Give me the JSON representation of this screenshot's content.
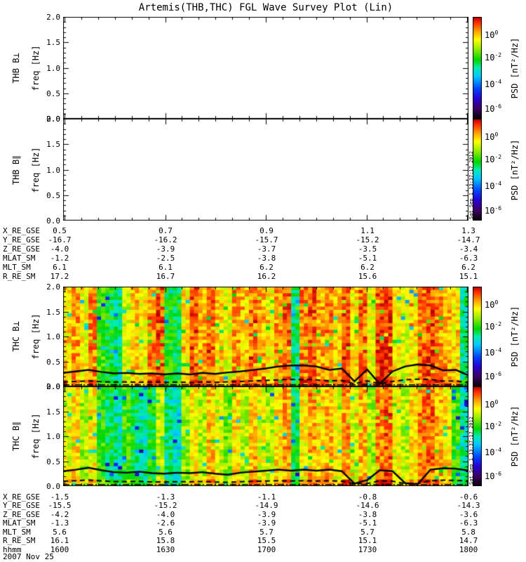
{
  "title": "Artemis(THB,THC) FGL Wave Survey Plot (Lin)",
  "date_label": "2007 Nov 25",
  "created_timestamp_vertical": "Sat Sep  1 13:37:17 2012",
  "axes": {
    "freq_axis_label": "freq [Hz]",
    "freq_tick_labels": [
      "2.0",
      "1.5",
      "1.0",
      "0.5",
      "0.0"
    ],
    "time_tick_labels": [
      "1600",
      "1630",
      "1700",
      "1730",
      "1800"
    ]
  },
  "colorbar": {
    "axis_label": "PSD [nT²/Hz]",
    "tick_labels": [
      {
        "base": "10",
        "exp": "0"
      },
      {
        "base": "10",
        "exp": "-2"
      },
      {
        "base": "10",
        "exp": "-4"
      },
      {
        "base": "10",
        "exp": "-6"
      }
    ]
  },
  "panels": [
    {
      "id": "thb-bperp",
      "label": "THB B⊥",
      "type": "blank",
      "timestamp_on_colorbar": false
    },
    {
      "id": "thb-bpar",
      "label": "THB B∥",
      "type": "blank",
      "timestamp_on_colorbar": true
    },
    {
      "id": "thc-bperp",
      "label": "THC B⊥",
      "type": "spectrogram",
      "timestamp_on_colorbar": false
    },
    {
      "id": "thc-bpar",
      "label": "THC B∥",
      "type": "spectrogram",
      "timestamp_on_colorbar": true
    }
  ],
  "ephemeris_mid": {
    "rows": [
      {
        "label": "X_RE_GSE",
        "values": [
          "0.5",
          "0.7",
          "0.9",
          "1.1",
          "1.3"
        ]
      },
      {
        "label": "Y_RE_GSE",
        "values": [
          "-16.7",
          "-16.2",
          "-15.7",
          "-15.2",
          "-14.7"
        ]
      },
      {
        "label": "Z_RE_GSE",
        "values": [
          "-4.0",
          "-3.9",
          "-3.7",
          "-3.5",
          "-3.4"
        ]
      },
      {
        "label": "MLAT_SM",
        "values": [
          "-1.2",
          "-2.5",
          "-3.8",
          "-5.1",
          "-6.3"
        ]
      },
      {
        "label": "MLT_SM",
        "values": [
          "6.1",
          "6.1",
          "6.2",
          "6.2",
          "6.2"
        ]
      },
      {
        "label": "R_RE_SM",
        "values": [
          "17.2",
          "16.7",
          "16.2",
          "15.6",
          "15.1"
        ]
      }
    ]
  },
  "ephemeris_bottom": {
    "rows": [
      {
        "label": "X_RE_GSE",
        "values": [
          "-1.5",
          "-1.3",
          "-1.1",
          "-0.8",
          "-0.6"
        ]
      },
      {
        "label": "Y_RE_GSE",
        "values": [
          "-15.5",
          "-15.2",
          "-14.9",
          "-14.6",
          "-14.3"
        ]
      },
      {
        "label": "Z_RE_GSE",
        "values": [
          "-4.2",
          "-4.0",
          "-3.9",
          "-3.8",
          "-3.6"
        ]
      },
      {
        "label": "MLAT_SM",
        "values": [
          "-1.3",
          "-2.6",
          "-3.9",
          "-5.1",
          "-6.3"
        ]
      },
      {
        "label": "MLT_SM",
        "values": [
          "5.6",
          "5.6",
          "5.7",
          "5.7",
          "5.8"
        ]
      },
      {
        "label": "R_RE_SM",
        "values": [
          "16.1",
          "15.8",
          "15.5",
          "15.1",
          "14.7"
        ]
      },
      {
        "label": "hhmm",
        "values": [
          "1600",
          "1630",
          "1700",
          "1730",
          "1800"
        ]
      }
    ]
  },
  "chart_data": {
    "type": "heatmap",
    "title": "Artemis(THB,THC) FGL Wave Survey Plot (Lin)",
    "x_axis": {
      "label": "hhmm",
      "ticks": [
        "1600",
        "1630",
        "1700",
        "1730",
        "1800"
      ],
      "date": "2007 Nov 25"
    },
    "y_axis": {
      "label": "freq [Hz]",
      "range": [
        0.0,
        2.0
      ],
      "ticks": [
        2.0,
        1.5,
        1.0,
        0.5,
        0.0
      ]
    },
    "color_axis": {
      "label": "PSD [nT^2/Hz]",
      "tick_values": [
        1,
        0.01,
        0.0001,
        1e-06
      ],
      "approx_log10_range": [
        1.5,
        -7
      ],
      "colormap_low_to_high": [
        "#000000",
        "#3c005f",
        "#2800d2",
        "#0046ff",
        "#00c8ff",
        "#00ebb4",
        "#00d700",
        "#8ceb00",
        "#ffff00",
        "#ff9600",
        "#ff2800",
        "#b90000"
      ]
    },
    "panels": [
      {
        "name": "THB B-perp",
        "type": "blank"
      },
      {
        "name": "THB B-par",
        "type": "blank"
      },
      {
        "name": "THC B-perp",
        "type": "spectrogram",
        "column_psd_levels_0to1": [
          0.8,
          0.86,
          0.78,
          0.88,
          0.62,
          0.57,
          0.52,
          0.74,
          0.82,
          0.78,
          0.88,
          0.92,
          0.6,
          0.56,
          0.8,
          0.92,
          0.85,
          0.9,
          0.82,
          0.76,
          0.87,
          0.82,
          0.88,
          0.84,
          0.78,
          0.86,
          0.9,
          0.52,
          0.88,
          0.92,
          0.85,
          0.88,
          0.82,
          0.92,
          0.8,
          0.9,
          0.76,
          0.94,
          0.95,
          0.78,
          0.75,
          0.78,
          0.9,
          0.93,
          0.88,
          0.84,
          0.8,
          0.52
        ],
        "black_line_freq_hz": [
          0.27,
          0.3,
          0.33,
          0.29,
          0.26,
          0.27,
          0.25,
          0.26,
          0.24,
          0.26,
          0.24,
          0.27,
          0.25,
          0.28,
          0.3,
          0.33,
          0.36,
          0.4,
          0.42,
          0.42,
          0.4,
          0.33,
          0.36,
          0.1,
          0.34,
          0.05,
          0.3,
          0.4,
          0.44,
          0.42,
          0.32,
          0.33,
          0.22
        ],
        "dashed_line_scale": 0.33,
        "dashdot_line_freq_hz": 0.03
      },
      {
        "name": "THC B-par",
        "type": "spectrogram",
        "column_psd_levels_0to1": [
          0.76,
          0.8,
          0.7,
          0.78,
          0.6,
          0.55,
          0.5,
          0.62,
          0.54,
          0.48,
          0.58,
          0.72,
          0.52,
          0.47,
          0.68,
          0.78,
          0.7,
          0.82,
          0.74,
          0.66,
          0.8,
          0.72,
          0.84,
          0.76,
          0.7,
          0.8,
          0.86,
          0.56,
          0.78,
          0.86,
          0.8,
          0.84,
          0.76,
          0.86,
          0.74,
          0.84,
          0.7,
          0.88,
          0.92,
          0.76,
          0.72,
          0.8,
          0.88,
          0.9,
          0.84,
          0.8,
          0.62,
          0.5
        ],
        "black_line_freq_hz": [
          0.3,
          0.33,
          0.37,
          0.32,
          0.28,
          0.27,
          0.29,
          0.26,
          0.25,
          0.27,
          0.26,
          0.28,
          0.25,
          0.23,
          0.27,
          0.29,
          0.31,
          0.33,
          0.31,
          0.33,
          0.31,
          0.33,
          0.3,
          0.05,
          0.12,
          0.32,
          0.3,
          0.06,
          0.04,
          0.33,
          0.36,
          0.35,
          0.31
        ],
        "dashed_line_scale": 0.33,
        "dashdot_line_freq_hz": 0.03
      }
    ]
  }
}
